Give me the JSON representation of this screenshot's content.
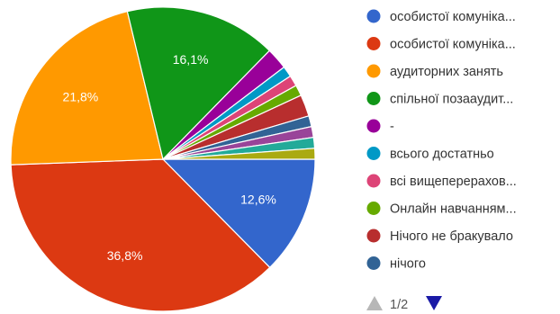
{
  "chart_data": {
    "type": "pie",
    "slices": [
      {
        "name": "особистої комуніка...",
        "value": 12.6,
        "label": "12,6%",
        "color": "#3366cc"
      },
      {
        "name": "особистої комуніка...",
        "value": 36.8,
        "label": "36,8%",
        "color": "#dc3912"
      },
      {
        "name": "аудиторних занять",
        "value": 21.8,
        "label": "21,8%",
        "color": "#ff9900"
      },
      {
        "name": "спільної позааудит...",
        "value": 16.1,
        "label": "16,1%",
        "color": "#109618"
      },
      {
        "name": "-",
        "value": 2.3,
        "label": "",
        "color": "#990099"
      },
      {
        "name": "всього достатньо",
        "value": 1.15,
        "label": "",
        "color": "#0099c6"
      },
      {
        "name": "всі вищеперерахов...",
        "value": 1.15,
        "label": "",
        "color": "#dd4477"
      },
      {
        "name": "Онлайн навчанням...",
        "value": 1.15,
        "label": "",
        "color": "#66aa00"
      },
      {
        "name": "Нічого не бракувало",
        "value": 2.3,
        "label": "",
        "color": "#b82e2e"
      },
      {
        "name": "нічого",
        "value": 1.15,
        "label": "",
        "color": "#316395"
      },
      {
        "name": "",
        "value": 1.15,
        "label": "",
        "color": "#994499"
      },
      {
        "name": "",
        "value": 1.15,
        "label": "",
        "color": "#22aa99"
      },
      {
        "name": "",
        "value": 1.15,
        "label": "",
        "color": "#aaaa11"
      }
    ],
    "legend_position": "right"
  },
  "legend_pager": {
    "text": "1/2",
    "up_color": "#b7b7b7",
    "down_color": "#1a1aa6"
  }
}
